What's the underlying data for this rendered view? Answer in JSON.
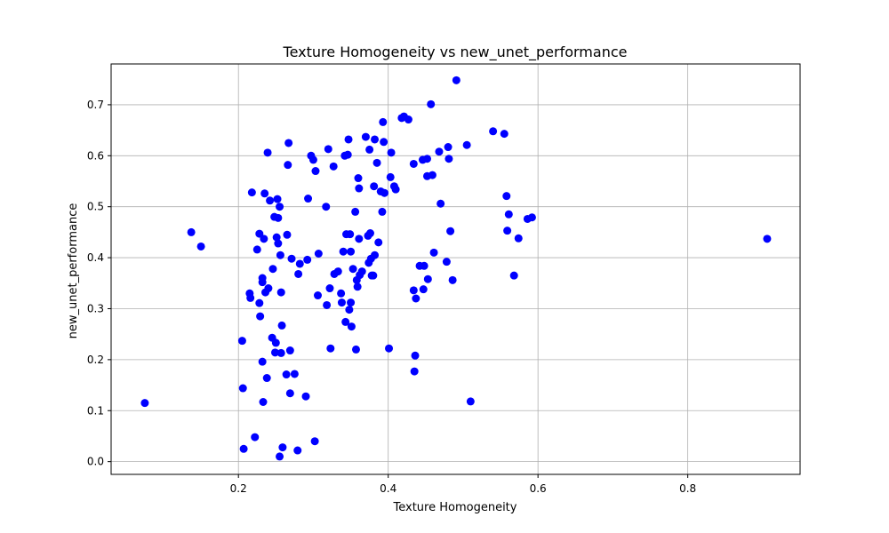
{
  "chart_data": {
    "type": "scatter",
    "title": "Texture Homogeneity vs new_unet_performance",
    "xlabel": "Texture Homogeneity",
    "ylabel": "new_unet_performance",
    "xlim": [
      0.03,
      0.95
    ],
    "ylim": [
      -0.025,
      0.78
    ],
    "xticks": [
      0.2,
      0.4,
      0.6,
      0.8
    ],
    "xtick_labels": [
      "0.2",
      "0.4",
      "0.6",
      "0.8"
    ],
    "yticks": [
      0.0,
      0.1,
      0.2,
      0.3,
      0.4,
      0.5,
      0.6,
      0.7
    ],
    "ytick_labels": [
      "0.0",
      "0.1",
      "0.2",
      "0.3",
      "0.4",
      "0.5",
      "0.6",
      "0.7"
    ],
    "grid": true,
    "point_color": "#0000ff",
    "points": [
      [
        0.075,
        0.115
      ],
      [
        0.137,
        0.45
      ],
      [
        0.15,
        0.422
      ],
      [
        0.205,
        0.237
      ],
      [
        0.206,
        0.144
      ],
      [
        0.207,
        0.025
      ],
      [
        0.215,
        0.33
      ],
      [
        0.216,
        0.321
      ],
      [
        0.218,
        0.528
      ],
      [
        0.222,
        0.048
      ],
      [
        0.225,
        0.416
      ],
      [
        0.228,
        0.447
      ],
      [
        0.228,
        0.311
      ],
      [
        0.229,
        0.285
      ],
      [
        0.232,
        0.36
      ],
      [
        0.232,
        0.352
      ],
      [
        0.232,
        0.196
      ],
      [
        0.233,
        0.117
      ],
      [
        0.234,
        0.437
      ],
      [
        0.235,
        0.526
      ],
      [
        0.236,
        0.332
      ],
      [
        0.238,
        0.164
      ],
      [
        0.239,
        0.606
      ],
      [
        0.24,
        0.34
      ],
      [
        0.242,
        0.512
      ],
      [
        0.245,
        0.243
      ],
      [
        0.246,
        0.378
      ],
      [
        0.248,
        0.48
      ],
      [
        0.249,
        0.214
      ],
      [
        0.25,
        0.233
      ],
      [
        0.251,
        0.44
      ],
      [
        0.252,
        0.515
      ],
      [
        0.253,
        0.428
      ],
      [
        0.253,
        0.478
      ],
      [
        0.255,
        0.5
      ],
      [
        0.255,
        0.01
      ],
      [
        0.256,
        0.405
      ],
      [
        0.257,
        0.213
      ],
      [
        0.257,
        0.332
      ],
      [
        0.258,
        0.267
      ],
      [
        0.259,
        0.028
      ],
      [
        0.264,
        0.171
      ],
      [
        0.265,
        0.445
      ],
      [
        0.266,
        0.582
      ],
      [
        0.267,
        0.625
      ],
      [
        0.269,
        0.134
      ],
      [
        0.269,
        0.218
      ],
      [
        0.271,
        0.398
      ],
      [
        0.275,
        0.172
      ],
      [
        0.279,
        0.022
      ],
      [
        0.28,
        0.368
      ],
      [
        0.282,
        0.388
      ],
      [
        0.29,
        0.128
      ],
      [
        0.292,
        0.396
      ],
      [
        0.293,
        0.516
      ],
      [
        0.297,
        0.6
      ],
      [
        0.3,
        0.592
      ],
      [
        0.302,
        0.04
      ],
      [
        0.303,
        0.57
      ],
      [
        0.306,
        0.326
      ],
      [
        0.307,
        0.408
      ],
      [
        0.317,
        0.5
      ],
      [
        0.318,
        0.307
      ],
      [
        0.32,
        0.613
      ],
      [
        0.322,
        0.34
      ],
      [
        0.323,
        0.222
      ],
      [
        0.327,
        0.579
      ],
      [
        0.328,
        0.368
      ],
      [
        0.333,
        0.373
      ],
      [
        0.337,
        0.33
      ],
      [
        0.338,
        0.312
      ],
      [
        0.34,
        0.412
      ],
      [
        0.342,
        0.6
      ],
      [
        0.343,
        0.274
      ],
      [
        0.344,
        0.446
      ],
      [
        0.346,
        0.602
      ],
      [
        0.347,
        0.632
      ],
      [
        0.348,
        0.298
      ],
      [
        0.349,
        0.446
      ],
      [
        0.35,
        0.412
      ],
      [
        0.35,
        0.312
      ],
      [
        0.351,
        0.265
      ],
      [
        0.353,
        0.378
      ],
      [
        0.356,
        0.49
      ],
      [
        0.357,
        0.22
      ],
      [
        0.358,
        0.356
      ],
      [
        0.359,
        0.343
      ],
      [
        0.36,
        0.556
      ],
      [
        0.361,
        0.536
      ],
      [
        0.361,
        0.437
      ],
      [
        0.362,
        0.366
      ],
      [
        0.365,
        0.373
      ],
      [
        0.37,
        0.637
      ],
      [
        0.373,
        0.443
      ],
      [
        0.374,
        0.39
      ],
      [
        0.375,
        0.612
      ],
      [
        0.376,
        0.448
      ],
      [
        0.377,
        0.398
      ],
      [
        0.378,
        0.365
      ],
      [
        0.38,
        0.365
      ],
      [
        0.381,
        0.54
      ],
      [
        0.382,
        0.405
      ],
      [
        0.382,
        0.632
      ],
      [
        0.385,
        0.586
      ],
      [
        0.387,
        0.43
      ],
      [
        0.39,
        0.53
      ],
      [
        0.392,
        0.49
      ],
      [
        0.393,
        0.666
      ],
      [
        0.394,
        0.627
      ],
      [
        0.395,
        0.527
      ],
      [
        0.401,
        0.222
      ],
      [
        0.403,
        0.558
      ],
      [
        0.404,
        0.606
      ],
      [
        0.408,
        0.54
      ],
      [
        0.41,
        0.534
      ],
      [
        0.418,
        0.674
      ],
      [
        0.421,
        0.677
      ],
      [
        0.427,
        0.671
      ],
      [
        0.434,
        0.584
      ],
      [
        0.434,
        0.336
      ],
      [
        0.435,
        0.177
      ],
      [
        0.436,
        0.208
      ],
      [
        0.437,
        0.32
      ],
      [
        0.442,
        0.384
      ],
      [
        0.446,
        0.592
      ],
      [
        0.447,
        0.338
      ],
      [
        0.448,
        0.384
      ],
      [
        0.452,
        0.594
      ],
      [
        0.452,
        0.56
      ],
      [
        0.453,
        0.358
      ],
      [
        0.457,
        0.701
      ],
      [
        0.459,
        0.562
      ],
      [
        0.461,
        0.41
      ],
      [
        0.468,
        0.608
      ],
      [
        0.47,
        0.506
      ],
      [
        0.478,
        0.392
      ],
      [
        0.48,
        0.617
      ],
      [
        0.481,
        0.594
      ],
      [
        0.483,
        0.452
      ],
      [
        0.486,
        0.356
      ],
      [
        0.491,
        0.748
      ],
      [
        0.505,
        0.621
      ],
      [
        0.51,
        0.118
      ],
      [
        0.54,
        0.648
      ],
      [
        0.555,
        0.643
      ],
      [
        0.558,
        0.521
      ],
      [
        0.559,
        0.453
      ],
      [
        0.561,
        0.485
      ],
      [
        0.568,
        0.365
      ],
      [
        0.574,
        0.438
      ],
      [
        0.586,
        0.476
      ],
      [
        0.592,
        0.479
      ],
      [
        0.906,
        0.437
      ]
    ]
  }
}
